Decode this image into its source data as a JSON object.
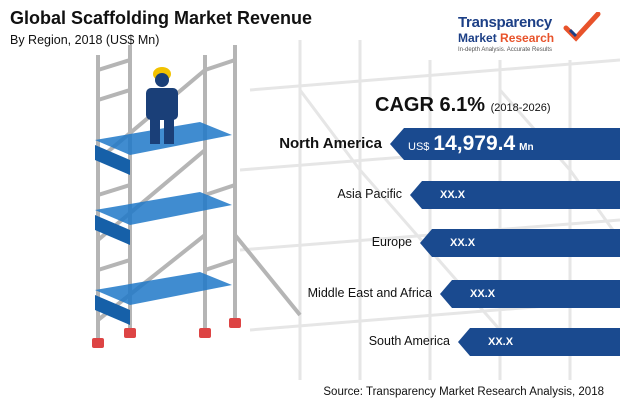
{
  "header": {
    "title": "Global Scaffolding Market Revenue",
    "subtitle": "By Region, 2018 (US$ Mn)"
  },
  "logo": {
    "line1": "Transparency",
    "line2a": "Market ",
    "line2b": "Research",
    "tagline": "In-depth Analysis. Accurate Results"
  },
  "cagr": {
    "label": "CAGR 6.1%",
    "period": "(2018-2026)"
  },
  "chart_data": {
    "type": "bar",
    "title": "Global Scaffolding Market Revenue",
    "subtitle": "By Region, 2018 (US$ Mn)",
    "categories": [
      "North America",
      "Asia Pacific",
      "Europe",
      "Middle East and Africa",
      "South America"
    ],
    "value_labels": [
      "14,979.4",
      "XX.X",
      "XX.X",
      "XX.X",
      "XX.X"
    ],
    "values": [
      14979.4,
      null,
      null,
      null,
      null
    ],
    "currency": "US$",
    "unit": "Mn",
    "highlight_color": "#1a4a8f"
  },
  "source": "Source: Transparency Market Research Analysis, 2018",
  "colors": {
    "accent": "#1a4a8f",
    "logo_blue": "#1c3f86",
    "logo_orange": "#e8532b"
  }
}
